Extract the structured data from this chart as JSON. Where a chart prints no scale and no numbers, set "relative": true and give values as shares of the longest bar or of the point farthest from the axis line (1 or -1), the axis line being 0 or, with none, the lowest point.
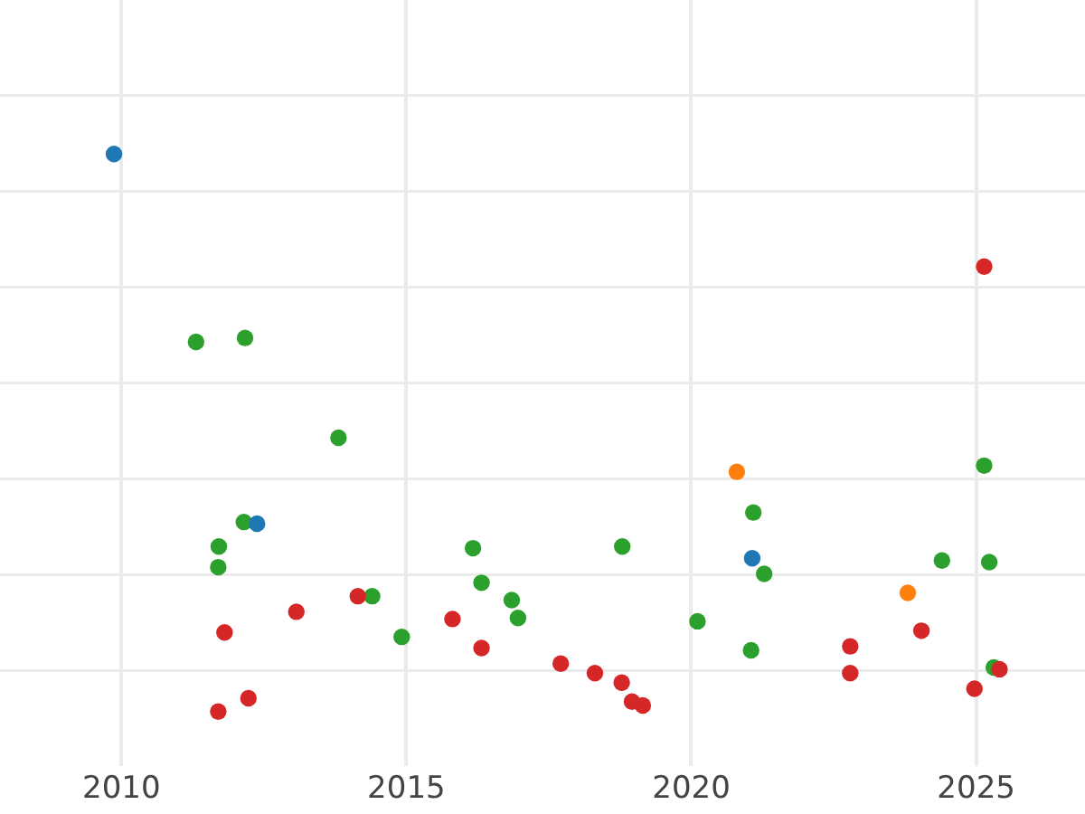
{
  "chart_data": {
    "type": "scatter",
    "relative": true,
    "xlim": [
      2007.87,
      2026.91
    ],
    "xticks": [
      2010,
      2015,
      2020,
      2025
    ],
    "grid": true,
    "marker": "circle",
    "series": [
      {
        "color": "#1f77b4",
        "x": [
          2009.87,
          2012.38,
          2021.07
        ],
        "values": [
          1.0,
          0.337,
          0.275
        ]
      },
      {
        "color": "#ff7f0e",
        "x": [
          2020.8,
          2023.8
        ],
        "values": [
          0.43,
          0.213
        ]
      },
      {
        "color": "#d62728",
        "x": [
          2014.15,
          2013.07,
          2011.81,
          2015.81,
          2016.32,
          2012.23,
          2011.7,
          2025.14,
          2017.71,
          2018.31,
          2018.78,
          2018.96,
          2019.15,
          2022.79,
          2022.79,
          2024.04,
          2025.41,
          2024.97
        ],
        "values": [
          0.207,
          0.179,
          0.142,
          0.166,
          0.114,
          0.024,
          0.0,
          0.798,
          0.086,
          0.069,
          0.052,
          0.018,
          0.011,
          0.117,
          0.069,
          0.145,
          0.076,
          0.041
        ]
      },
      {
        "color": "#2ca02c",
        "x": [
          2011.31,
          2012.17,
          2013.81,
          2012.15,
          2011.71,
          2011.7,
          2014.4,
          2014.92,
          2016.17,
          2016.32,
          2016.85,
          2016.96,
          2018.79,
          2020.11,
          2021.09,
          2021.28,
          2021.05,
          2024.4,
          2025.14,
          2025.23,
          2025.31
        ],
        "values": [
          0.663,
          0.67,
          0.491,
          0.34,
          0.296,
          0.259,
          0.207,
          0.134,
          0.293,
          0.231,
          0.2,
          0.168,
          0.296,
          0.162,
          0.357,
          0.247,
          0.11,
          0.271,
          0.441,
          0.268,
          0.079
        ]
      }
    ]
  }
}
